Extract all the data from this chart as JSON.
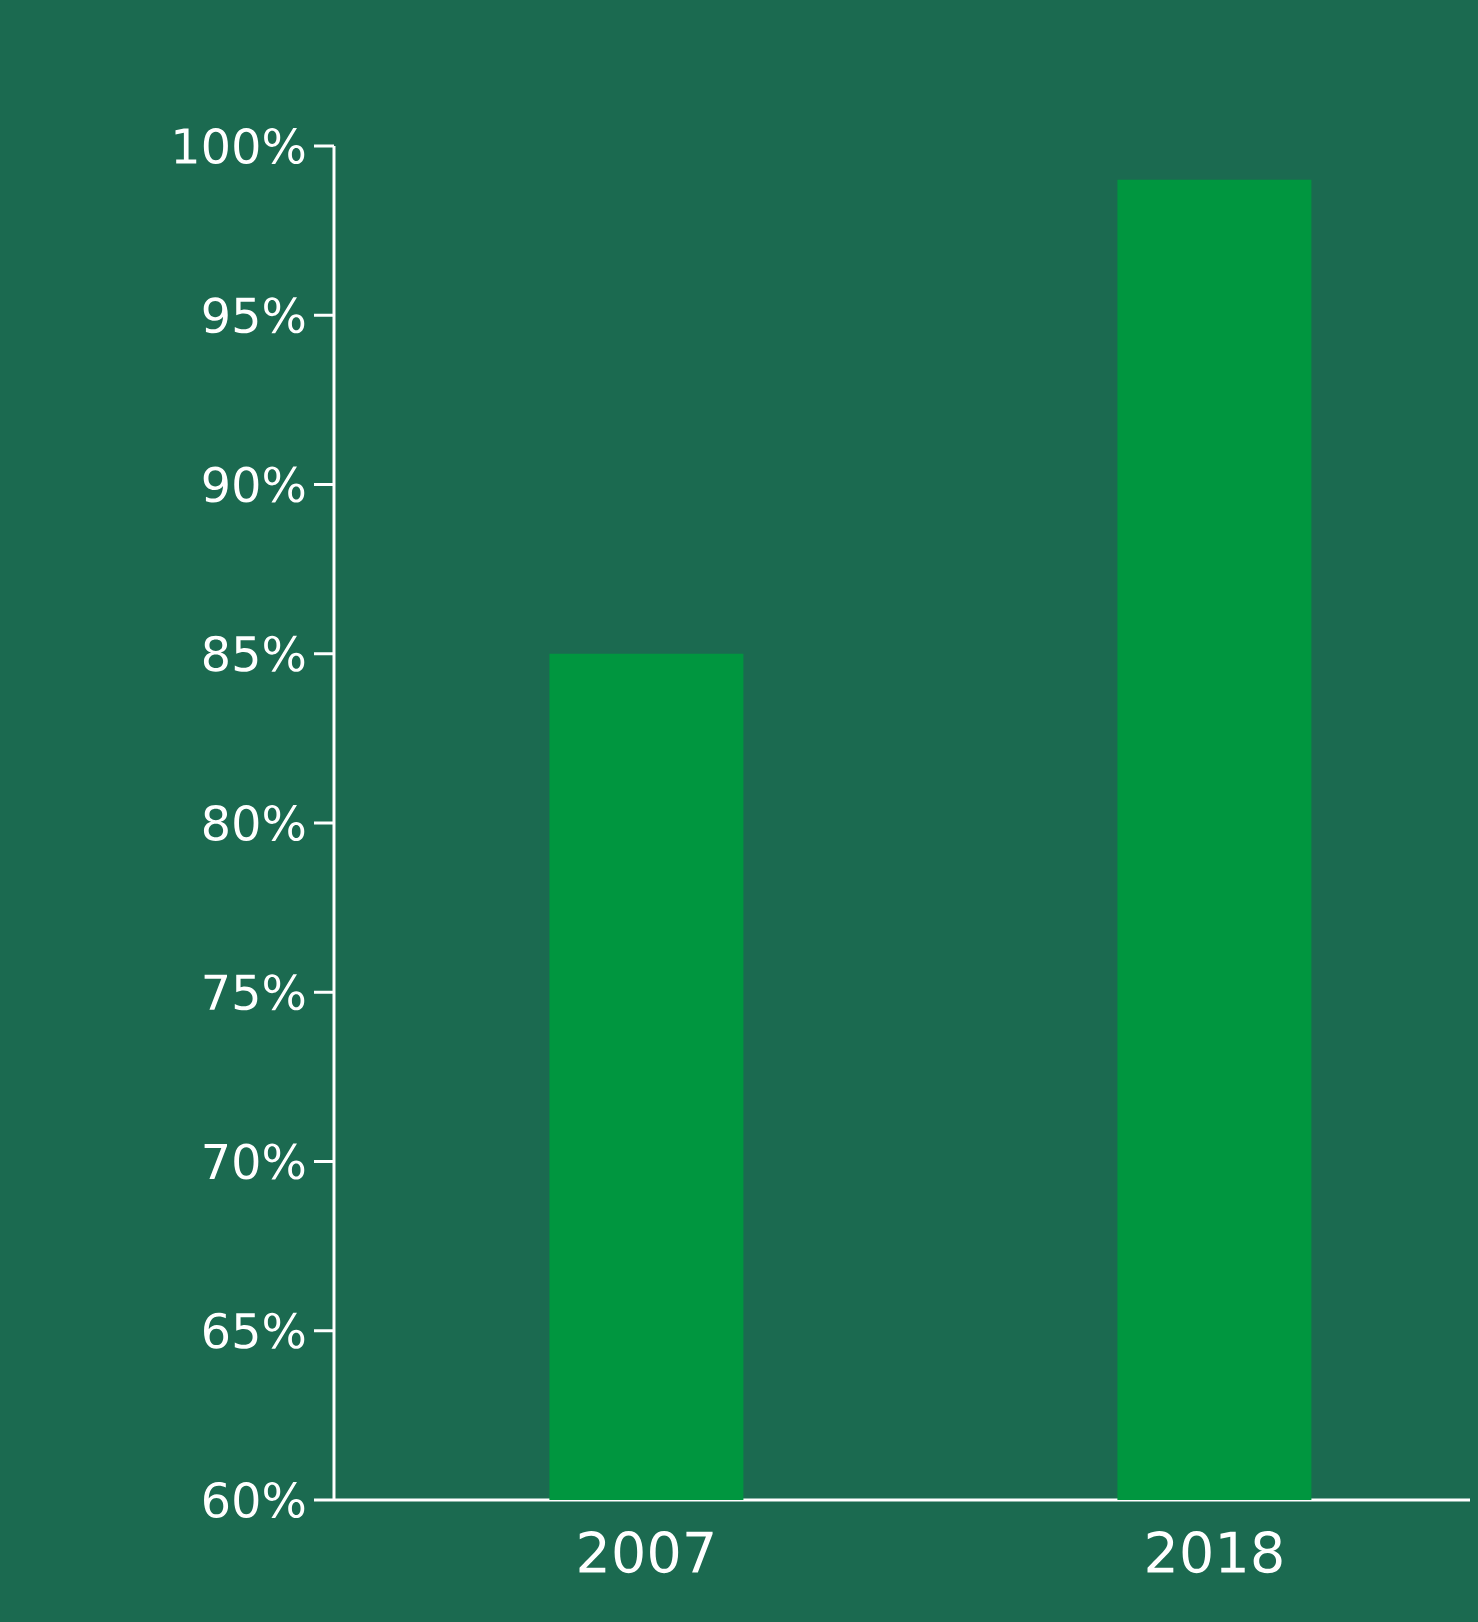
{
  "chart_data": {
    "type": "bar",
    "categories": [
      "2007",
      "2018"
    ],
    "values": [
      85,
      99
    ],
    "color": "#00963f",
    "ylim": [
      60,
      100
    ],
    "yticks": [
      {
        "value": 60,
        "label": "60%"
      },
      {
        "value": 65,
        "label": "65%"
      },
      {
        "value": 70,
        "label": "70%"
      },
      {
        "value": 75,
        "label": "75%"
      },
      {
        "value": 80,
        "label": "80%"
      },
      {
        "value": 85,
        "label": "85%"
      },
      {
        "value": 90,
        "label": "90%"
      },
      {
        "value": 95,
        "label": "95%"
      },
      {
        "value": 100,
        "label": "100%"
      }
    ]
  }
}
